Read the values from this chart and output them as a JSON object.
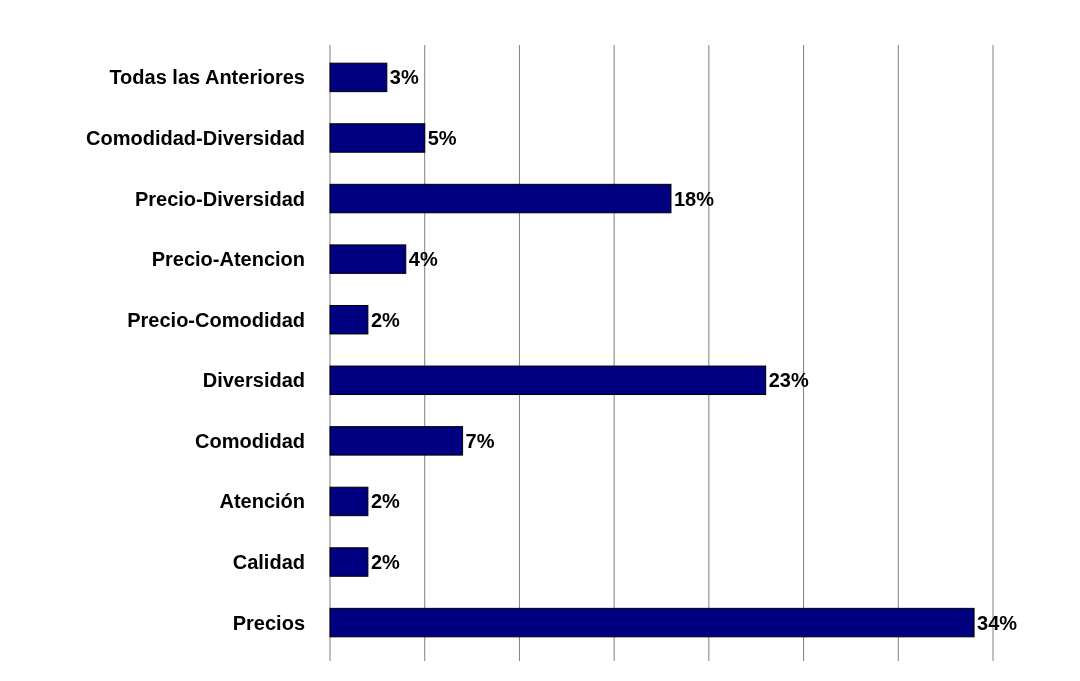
{
  "chart_data": {
    "type": "bar",
    "orientation": "horizontal",
    "categories": [
      "Todas las Anteriores",
      "Comodidad-Diversidad",
      "Precio-Diversidad",
      "Precio-Atencion",
      "Precio-Comodidad",
      "Diversidad",
      "Comodidad",
      "Atención",
      "Calidad",
      "Precios"
    ],
    "values": [
      3,
      5,
      18,
      4,
      2,
      23,
      7,
      2,
      2,
      34
    ],
    "value_labels": [
      "3%",
      "5%",
      "18%",
      "4%",
      "2%",
      "23%",
      "7%",
      "2%",
      "2%",
      "34%"
    ],
    "color": "#000080",
    "xlim": [
      0,
      35
    ],
    "xticks": [
      {
        "value": 0,
        "label": null
      },
      {
        "value": 5,
        "label": null
      },
      {
        "value": 10,
        "label": null
      },
      {
        "value": 15,
        "label": null
      },
      {
        "value": 20,
        "label": null
      },
      {
        "value": 25,
        "label": null
      },
      {
        "value": 30,
        "label": null
      },
      {
        "value": 35,
        "label": null
      }
    ],
    "tick_labels": "y",
    "grid": "x"
  }
}
